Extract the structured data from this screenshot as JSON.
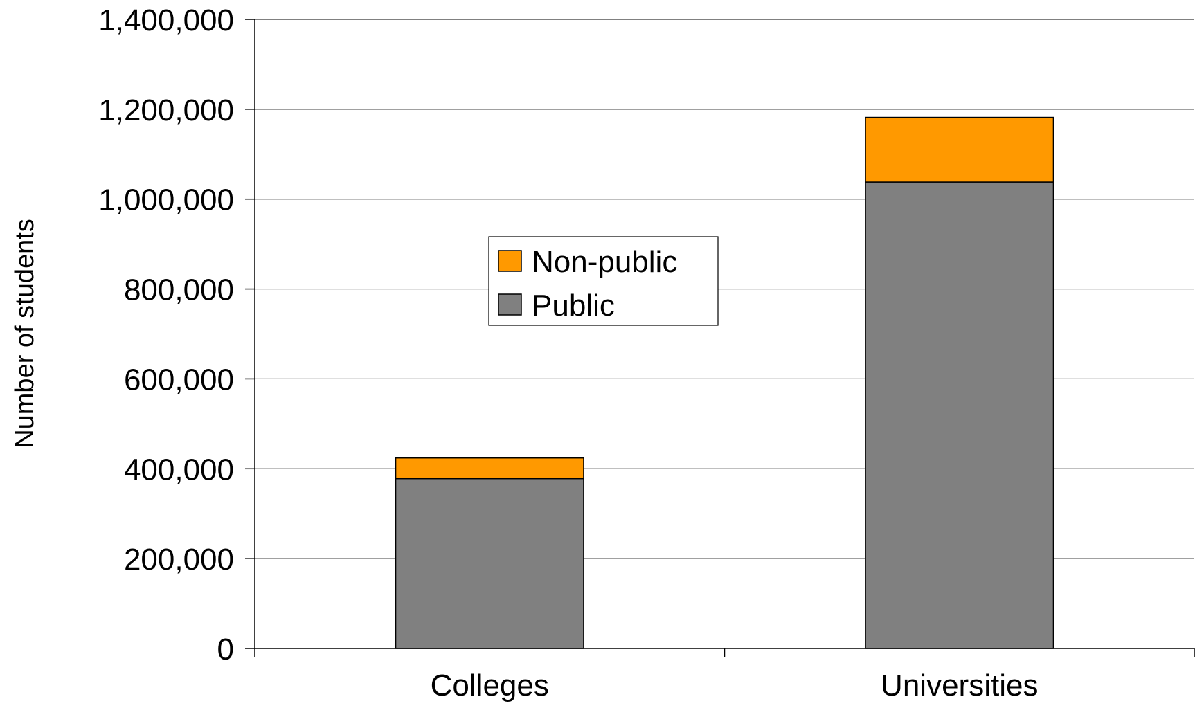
{
  "chart_data": {
    "type": "bar",
    "stacked": true,
    "categories": [
      "Colleges",
      "Universities"
    ],
    "series": [
      {
        "name": "Public",
        "values": [
          378000,
          1038000
        ],
        "color": "#808080"
      },
      {
        "name": "Non-public",
        "values": [
          46000,
          144000
        ],
        "color": "#FF9900"
      }
    ],
    "ylabel": "Number of students",
    "xlabel": "",
    "ylim": [
      0,
      1400000
    ],
    "yticks": [
      0,
      200000,
      400000,
      600000,
      800000,
      1000000,
      1200000,
      1400000
    ],
    "ytick_labels": [
      "0",
      "200,000",
      "400,000",
      "600,000",
      "800,000",
      "1,000,000",
      "1,200,000",
      "1,400,000"
    ],
    "grid": true,
    "legend": {
      "placement": "center-left",
      "entries": [
        "Non-public",
        "Public"
      ]
    }
  }
}
